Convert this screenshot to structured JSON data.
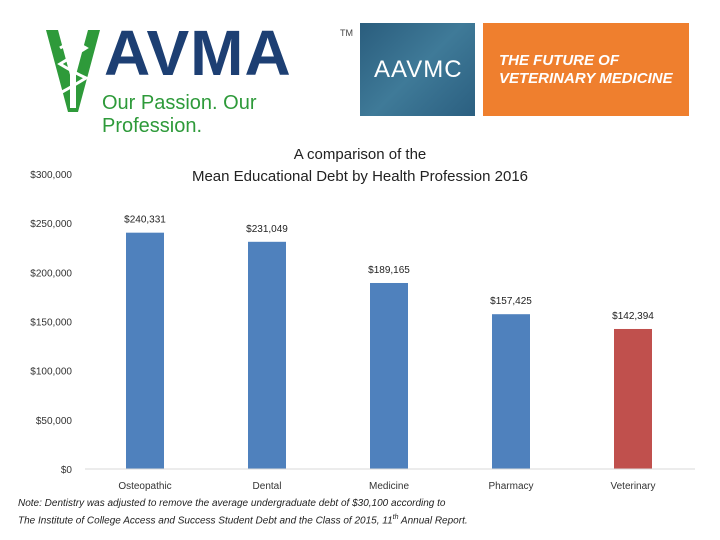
{
  "header": {
    "avma_name": "AVMA",
    "avma_trademark": "TM",
    "avma_tagline": "Our Passion. Our Profession.",
    "aavmc_name": "AAVMC",
    "future_line_1": "THE FUTURE OF",
    "future_line_2": "VETERINARY MEDICINE",
    "colors": {
      "avma_blue": "#1d3f73",
      "avma_green": "#2e9a3a",
      "aavmc_blue": "#336b8c",
      "future_orange": "#ef7f2e"
    }
  },
  "chart_data": {
    "type": "bar",
    "title_line_1": "A comparison of the",
    "title_line_2": "Mean Educational Debt by Health Profession 2016",
    "categories": [
      "Osteopathic",
      "Dental",
      "Medicine",
      "Pharmacy",
      "Veterinary"
    ],
    "values": [
      240331,
      231049,
      189165,
      157425,
      142394
    ],
    "value_labels": [
      "$240,331",
      "$231,049",
      "$189,165",
      "$157,425",
      "$142,394"
    ],
    "bar_colors": [
      "#4f81bd",
      "#4f81bd",
      "#4f81bd",
      "#4f81bd",
      "#c0504d"
    ],
    "y_ticks": [
      0,
      50000,
      100000,
      150000,
      200000,
      250000,
      300000
    ],
    "y_tick_labels": [
      "$0",
      "$50,000",
      "$100,000",
      "$150,000",
      "$200,000",
      "$250,000",
      "$300,000"
    ],
    "ylim": [
      0,
      300000
    ],
    "grid": false,
    "xlabel": "",
    "ylabel": ""
  },
  "note": {
    "line_1": "Note: Dentistry was adjusted to remove the average undergraduate debt of $30,100 according to",
    "line_2_prefix": "The Institute of College Access and Success Student Debt and the Class of 2015, 11",
    "line_2_sup": "th",
    "line_2_suffix": " Annual Report."
  }
}
